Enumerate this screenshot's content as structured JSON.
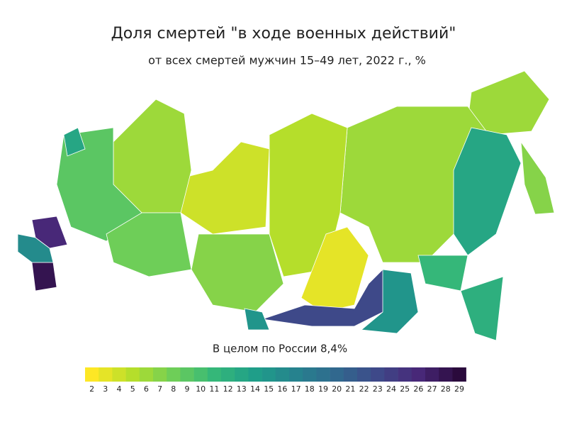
{
  "chart_data": {
    "type": "choropleth",
    "title": "Доля смертей \"в ходе военных действий\"",
    "subtitle": "от всех смертей мужчин 15–49 лет, 2022 г., %",
    "annotation": "В целом по России 8,4%",
    "colormap": [
      "#fde725",
      "#b5de2b",
      "#6ece58",
      "#35b779",
      "#1f9e89",
      "#26828e",
      "#31688e",
      "#3e4989",
      "#482878",
      "#2a0a3c"
    ],
    "colorbar_ticks": [
      2,
      3,
      4,
      5,
      6,
      7,
      8,
      9,
      10,
      11,
      12,
      13,
      14,
      15,
      16,
      17,
      18,
      19,
      20,
      21,
      22,
      23,
      24,
      25,
      26,
      27,
      28,
      29
    ],
    "regions": [
      6,
      7,
      6,
      5,
      3,
      23,
      15,
      13,
      11,
      12,
      4,
      7,
      15,
      6,
      9,
      8,
      26,
      28,
      16,
      13
    ]
  }
}
